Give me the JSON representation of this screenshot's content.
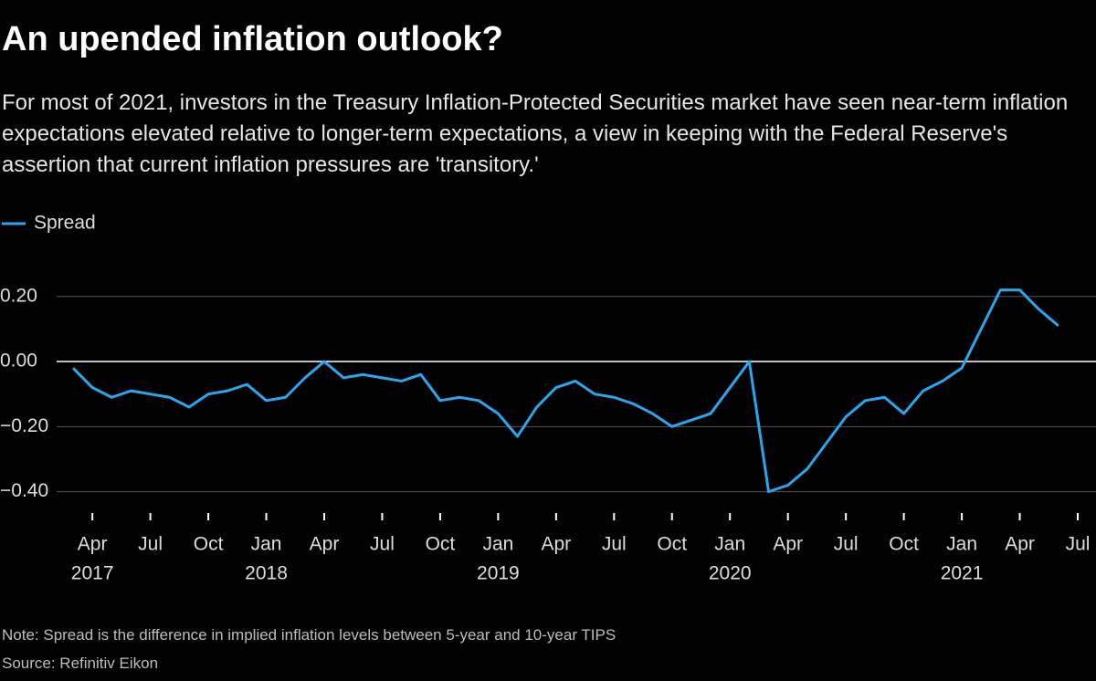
{
  "chart_data": {
    "type": "line",
    "title": "An upended inflation outlook?",
    "subtitle": "For most of 2021, investors in the Treasury Inflation-Protected Securities market have seen near-term inflation expectations elevated relative to longer-term expectations, a view in keeping with the Federal Reserve's assertion that current inflation pressures are 'transitory.'",
    "note": "Note: Spread is the difference in implied inflation levels between 5-year and 10-year TIPS",
    "source": "Source: Refinitiv Eikon",
    "legend": "top-left",
    "grid": true,
    "x": [
      "2017-03",
      "2017-04",
      "2017-05",
      "2017-06",
      "2017-07",
      "2017-08",
      "2017-09",
      "2017-10",
      "2017-11",
      "2017-12",
      "2018-01",
      "2018-02",
      "2018-03",
      "2018-04",
      "2018-05",
      "2018-06",
      "2018-07",
      "2018-08",
      "2018-09",
      "2018-10",
      "2018-11",
      "2018-12",
      "2019-01",
      "2019-02",
      "2019-03",
      "2019-04",
      "2019-05",
      "2019-06",
      "2019-07",
      "2019-08",
      "2019-09",
      "2019-10",
      "2019-11",
      "2019-12",
      "2020-01",
      "2020-02",
      "2020-03",
      "2020-04",
      "2020-05",
      "2020-06",
      "2020-07",
      "2020-08",
      "2020-09",
      "2020-10",
      "2020-11",
      "2020-12",
      "2021-01",
      "2021-02",
      "2021-03",
      "2021-04",
      "2021-05",
      "2021-06"
    ],
    "series": [
      {
        "name": "Spread",
        "color": "#2aa6ee",
        "values": [
          -0.02,
          -0.08,
          -0.11,
          -0.09,
          -0.1,
          -0.11,
          -0.14,
          -0.1,
          -0.09,
          -0.07,
          -0.12,
          -0.11,
          -0.05,
          0.0,
          -0.05,
          -0.04,
          -0.05,
          -0.06,
          -0.04,
          -0.12,
          -0.11,
          -0.12,
          -0.16,
          -0.23,
          -0.14,
          -0.08,
          -0.06,
          -0.1,
          -0.11,
          -0.13,
          -0.16,
          -0.2,
          -0.18,
          -0.16,
          -0.08,
          0.0,
          -0.4,
          -0.38,
          -0.33,
          -0.25,
          -0.17,
          -0.12,
          -0.11,
          -0.16,
          -0.09,
          -0.06,
          -0.02,
          0.1,
          0.22,
          0.22,
          0.16,
          0.11
        ]
      }
    ],
    "xlim": [
      "2017-03",
      "2021-07"
    ],
    "xticks": [
      {
        "value": "2017-04",
        "label": "Apr",
        "year": "2017"
      },
      {
        "value": "2017-07",
        "label": "Jul"
      },
      {
        "value": "2017-10",
        "label": "Oct"
      },
      {
        "value": "2018-01",
        "label": "Jan",
        "year": "2018"
      },
      {
        "value": "2018-04",
        "label": "Apr"
      },
      {
        "value": "2018-07",
        "label": "Jul"
      },
      {
        "value": "2018-10",
        "label": "Oct"
      },
      {
        "value": "2019-01",
        "label": "Jan",
        "year": "2019"
      },
      {
        "value": "2019-04",
        "label": "Apr"
      },
      {
        "value": "2019-07",
        "label": "Jul"
      },
      {
        "value": "2019-10",
        "label": "Oct"
      },
      {
        "value": "2020-01",
        "label": "Jan",
        "year": "2020"
      },
      {
        "value": "2020-04",
        "label": "Apr"
      },
      {
        "value": "2020-07",
        "label": "Jul"
      },
      {
        "value": "2020-10",
        "label": "Oct"
      },
      {
        "value": "2021-01",
        "label": "Jan",
        "year": "2021"
      },
      {
        "value": "2021-04",
        "label": "Apr"
      },
      {
        "value": "2021-07",
        "label": "Jul"
      }
    ],
    "ylim": [
      -0.46,
      0.32
    ],
    "yticks": [
      {
        "value": 0.2,
        "label": "0.20"
      },
      {
        "value": 0,
        "label": "0.00"
      },
      {
        "value": -0.2,
        "label": "−0.20"
      },
      {
        "value": -0.4,
        "label": "−0.40"
      }
    ]
  }
}
